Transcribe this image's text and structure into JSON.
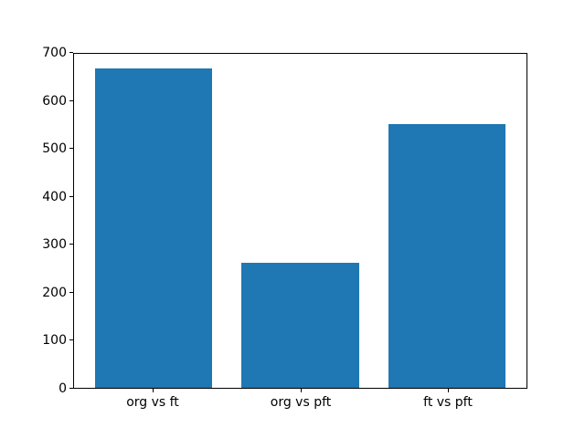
{
  "chart_data": {
    "type": "bar",
    "categories": [
      "org vs ft",
      "org vs pft",
      "ft vs pft"
    ],
    "values": [
      670,
      262,
      553
    ],
    "title": "",
    "xlabel": "",
    "ylabel": "",
    "ylim": [
      0,
      700
    ],
    "yticks": [
      0,
      100,
      200,
      300,
      400,
      500,
      600,
      700
    ],
    "bar_color": "#1f77b4",
    "spine_color": "#000000",
    "background_color": "#ffffff",
    "grid": false,
    "legend": null,
    "bar_width_fraction": 0.8
  }
}
